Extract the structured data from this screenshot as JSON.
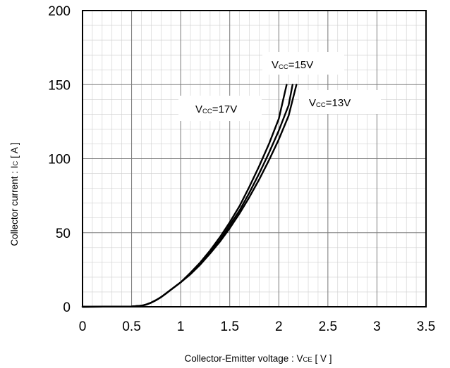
{
  "chart_data": {
    "type": "line",
    "xlabel": "Collector-Emitter voltage  :  V",
    "xlabel_sub": "CE",
    "xlabel_unit": " [ V ]",
    "ylabel": "Collector current : I",
    "ylabel_sub": "C",
    "ylabel_unit": " [ A ]",
    "xlim": [
      0,
      3.5
    ],
    "ylim": [
      0,
      200
    ],
    "xticks": [
      0,
      0.5,
      1,
      1.5,
      2,
      2.5,
      3,
      3.5
    ],
    "yticks": [
      0,
      50,
      100,
      150,
      200
    ],
    "xtick_labels": [
      "0",
      "0.5",
      "1",
      "1.5",
      "2",
      "2.5",
      "3",
      "3.5"
    ],
    "ytick_labels": [
      "0",
      "50",
      "100",
      "150",
      "200"
    ],
    "grid": true,
    "series": [
      {
        "name": "Vcc=17V",
        "label_main": "V",
        "label_sub": "CC",
        "label_rest": "=17V",
        "x": [
          0,
          0.5,
          0.6,
          0.65,
          0.7,
          0.75,
          0.8,
          0.85,
          0.9,
          1.0,
          1.1,
          1.2,
          1.3,
          1.4,
          1.5,
          1.6,
          1.7,
          1.8,
          1.9,
          2.0,
          2.08
        ],
        "y": [
          0,
          0.2,
          0.7,
          1.5,
          2.8,
          4.5,
          6.5,
          9.0,
          11.5,
          16.5,
          23,
          30,
          38,
          47,
          57,
          68,
          81,
          95,
          110,
          127,
          150
        ]
      },
      {
        "name": "Vcc=15V",
        "label_main": "V",
        "label_sub": "CC",
        "label_rest": "=15V",
        "x": [
          0,
          0.5,
          0.6,
          0.65,
          0.7,
          0.75,
          0.8,
          0.85,
          0.9,
          1.0,
          1.1,
          1.2,
          1.3,
          1.4,
          1.5,
          1.6,
          1.7,
          1.8,
          1.9,
          2.0,
          2.1,
          2.14
        ],
        "y": [
          0,
          0.2,
          0.7,
          1.5,
          2.8,
          4.5,
          6.5,
          9.0,
          11.5,
          16.5,
          22.5,
          29,
          37,
          45,
          55,
          65,
          77,
          90,
          104,
          119,
          136,
          150
        ]
      },
      {
        "name": "Vcc=13V",
        "label_main": "V",
        "label_sub": "CC",
        "label_rest": "=13V",
        "x": [
          0,
          0.5,
          0.6,
          0.65,
          0.7,
          0.75,
          0.8,
          0.85,
          0.9,
          1.0,
          1.1,
          1.2,
          1.3,
          1.4,
          1.5,
          1.6,
          1.7,
          1.8,
          1.9,
          2.0,
          2.1,
          2.18
        ],
        "y": [
          0,
          0.2,
          0.7,
          1.5,
          2.8,
          4.5,
          6.5,
          9.0,
          11.5,
          16.5,
          22,
          28.5,
          36,
          44,
          53,
          63,
          74,
          86,
          99,
          113,
          129,
          150
        ]
      }
    ]
  }
}
